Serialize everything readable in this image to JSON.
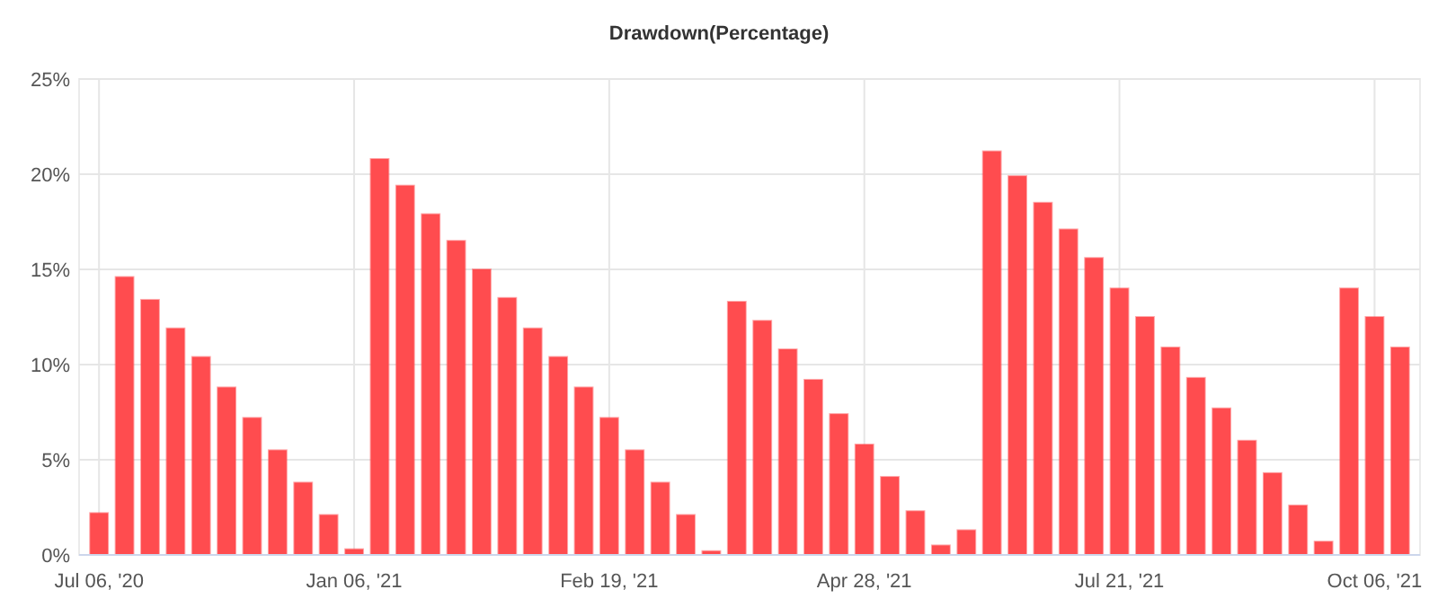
{
  "chart_data": {
    "type": "bar",
    "title": "Drawdown(Percentage)",
    "categories": [
      "Jul 06, '20",
      null,
      null,
      null,
      null,
      null,
      null,
      null,
      null,
      null,
      "Jan 06, '21",
      null,
      null,
      null,
      null,
      null,
      null,
      null,
      null,
      null,
      "Feb 19, '21",
      null,
      null,
      null,
      null,
      null,
      null,
      null,
      null,
      null,
      "Apr 28, '21",
      null,
      null,
      null,
      null,
      null,
      null,
      null,
      null,
      null,
      "Jul 21, '21",
      null,
      null,
      null,
      null,
      null,
      null,
      null,
      null,
      null,
      "Oct 06, '21",
      null
    ],
    "values": [
      2.2,
      14.6,
      13.4,
      11.9,
      10.4,
      8.8,
      7.2,
      5.5,
      3.8,
      2.1,
      0.3,
      20.8,
      19.4,
      17.9,
      16.5,
      15.0,
      13.5,
      11.9,
      10.4,
      8.8,
      7.2,
      5.5,
      3.8,
      2.1,
      0.2,
      13.3,
      12.3,
      10.8,
      9.2,
      7.4,
      5.8,
      4.1,
      2.3,
      0.5,
      1.3,
      21.2,
      19.9,
      18.5,
      17.1,
      15.6,
      14.0,
      12.5,
      10.9,
      9.3,
      7.7,
      6.0,
      4.3,
      2.6,
      0.7,
      14.0,
      12.5,
      10.9
    ],
    "color": "#ff4c4f",
    "ylim": [
      0,
      25
    ],
    "yticks": [
      {
        "value": 0,
        "label": "0%"
      },
      {
        "value": 5,
        "label": "5%"
      },
      {
        "value": 10,
        "label": "10%"
      },
      {
        "value": 15,
        "label": "15%"
      },
      {
        "value": 20,
        "label": "20%"
      },
      {
        "value": 25,
        "label": "25%"
      }
    ],
    "grid": true
  }
}
